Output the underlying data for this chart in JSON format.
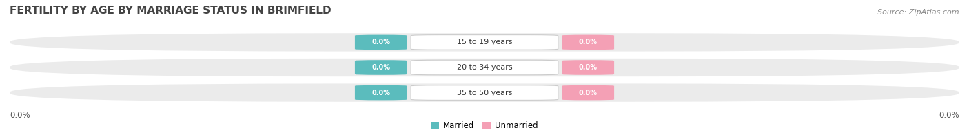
{
  "title": "FERTILITY BY AGE BY MARRIAGE STATUS IN BRIMFIELD",
  "source": "Source: ZipAtlas.com",
  "categories": [
    "15 to 19 years",
    "20 to 34 years",
    "35 to 50 years"
  ],
  "married_values": [
    0.0,
    0.0,
    0.0
  ],
  "unmarried_values": [
    0.0,
    0.0,
    0.0
  ],
  "married_color": "#5bbcbd",
  "unmarried_color": "#f4a0b5",
  "row_bg_color": "#ebebeb",
  "left_axis_label": "0.0%",
  "right_axis_label": "0.0%",
  "title_fontsize": 11,
  "source_fontsize": 8,
  "legend_married": "Married",
  "legend_unmarried": "Unmarried",
  "background_color": "#ffffff",
  "title_color": "#444444",
  "source_color": "#888888",
  "axis_label_color": "#555555"
}
